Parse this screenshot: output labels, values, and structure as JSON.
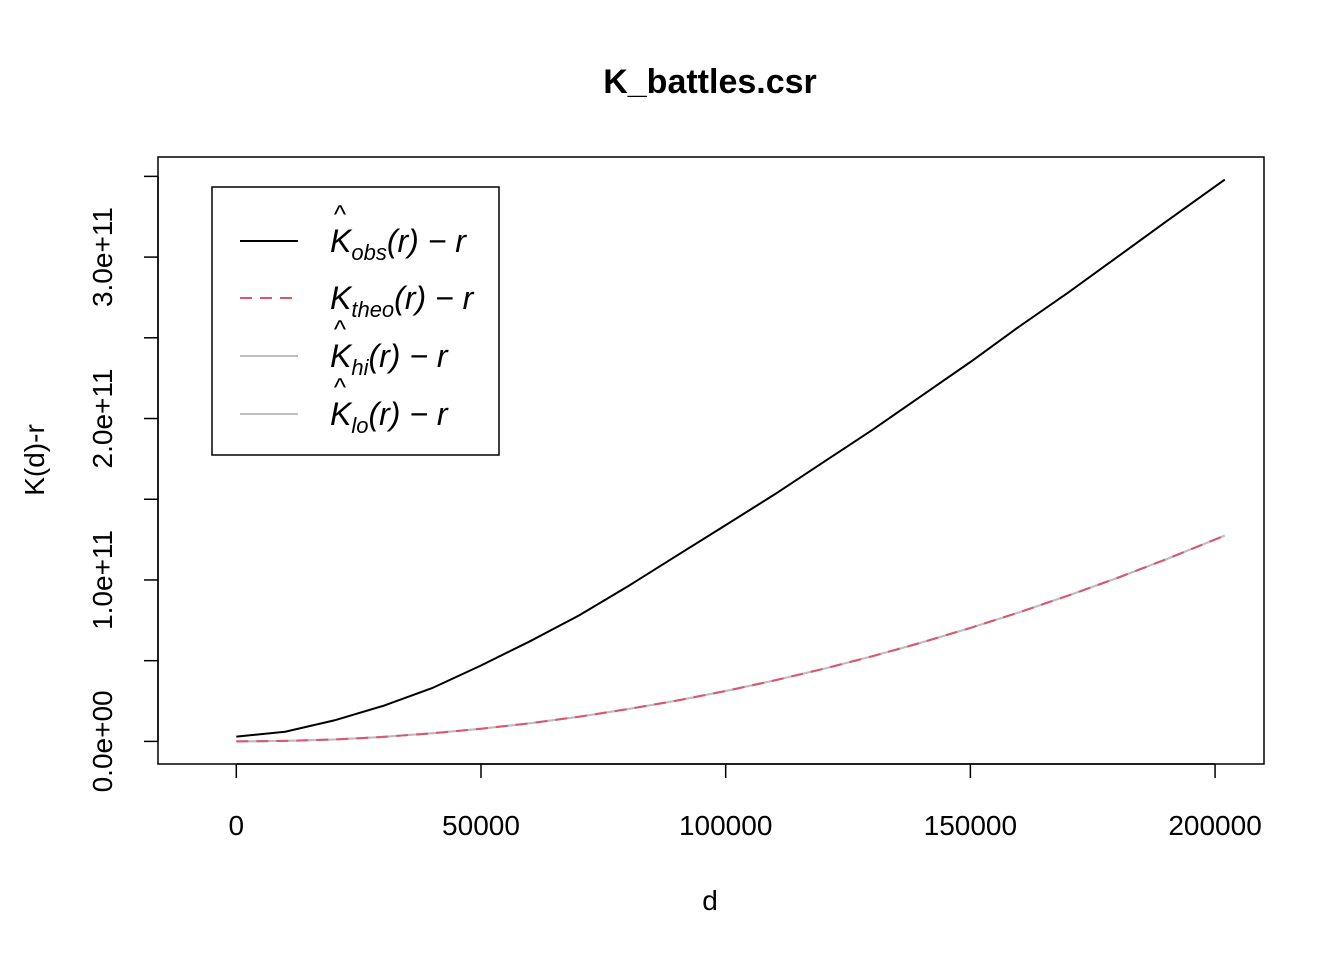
{
  "chart_data": {
    "type": "line",
    "title": "K_battles.csr",
    "xlabel": "d",
    "ylabel": "K(d)-r",
    "xlim": [
      -16000,
      210000
    ],
    "ylim": [
      -14000000000,
      362000000000
    ],
    "x_ticks": [
      0,
      50000,
      100000,
      150000,
      200000
    ],
    "x_tick_labels": [
      "0",
      "50000",
      "100000",
      "150000",
      "200000"
    ],
    "y_ticks": [
      0,
      50000000000,
      100000000000,
      150000000000,
      200000000000,
      250000000000,
      300000000000,
      350000000000
    ],
    "y_tick_labels": [
      "0.0e+00",
      "",
      "1.0e+11",
      "",
      "2.0e+11",
      "",
      "3.0e+11",
      ""
    ],
    "grid": false,
    "legend_position": "top-left",
    "series": [
      {
        "name": "obs",
        "color": "#000000",
        "dash": "solid",
        "x": [
          0,
          10000,
          20000,
          30000,
          40000,
          50000,
          60000,
          70000,
          80000,
          90000,
          100000,
          110000,
          120000,
          130000,
          140000,
          150000,
          160000,
          170000,
          180000,
          190000,
          202000
        ],
        "y": [
          3000000000,
          6000000000,
          13000000000,
          22000000000,
          33000000000,
          47000000000,
          62000000000,
          78000000000,
          96000000000,
          115000000000,
          134000000000,
          153000000000,
          173000000000,
          193000000000,
          214000000000,
          235000000000,
          257000000000,
          278000000000,
          300000000000,
          322000000000,
          348000000000
        ]
      },
      {
        "name": "theo",
        "color": "#DF536B",
        "dash": "dashed",
        "x": [
          0,
          10000,
          20000,
          30000,
          40000,
          50000,
          60000,
          70000,
          80000,
          90000,
          100000,
          110000,
          120000,
          130000,
          140000,
          150000,
          160000,
          170000,
          180000,
          190000,
          202000
        ],
        "y": [
          0,
          300000000,
          1200000000,
          2800000000,
          5000000000,
          7800000000,
          11200000000,
          15300000000,
          20000000000,
          25300000000,
          31200000000,
          37800000000,
          45000000000,
          52800000000,
          61200000000,
          70300000000,
          80000000000,
          90300000000,
          101200000000,
          112800000000,
          127500000000
        ]
      },
      {
        "name": "hi",
        "color": "#BEBEBE",
        "dash": "solid",
        "x": [
          0,
          10000,
          20000,
          30000,
          40000,
          50000,
          60000,
          70000,
          80000,
          90000,
          100000,
          110000,
          120000,
          130000,
          140000,
          150000,
          160000,
          170000,
          180000,
          190000,
          202000
        ],
        "y": [
          0,
          300000000,
          1200000000,
          2800000000,
          5000000000,
          7800000000,
          11200000000,
          15300000000,
          20000000000,
          25300000000,
          31200000000,
          37800000000,
          45000000000,
          52800000000,
          61200000000,
          70300000000,
          80000000000,
          90300000000,
          101200000000,
          112800000000,
          127500000000
        ]
      },
      {
        "name": "lo",
        "color": "#BEBEBE",
        "dash": "solid",
        "x": [
          0,
          10000,
          20000,
          30000,
          40000,
          50000,
          60000,
          70000,
          80000,
          90000,
          100000,
          110000,
          120000,
          130000,
          140000,
          150000,
          160000,
          170000,
          180000,
          190000,
          202000
        ],
        "y": [
          0,
          300000000,
          1200000000,
          2800000000,
          5000000000,
          7800000000,
          11200000000,
          15300000000,
          20000000000,
          25300000000,
          31200000000,
          37800000000,
          45000000000,
          52800000000,
          61200000000,
          70300000000,
          80000000000,
          90300000000,
          101200000000,
          112800000000,
          127500000000
        ]
      }
    ],
    "legend": [
      {
        "base": "K",
        "hat": true,
        "sub": "obs",
        "suffix": "(r) − r",
        "color": "#000000",
        "dash": "solid"
      },
      {
        "base": "K",
        "hat": false,
        "sub": "theo",
        "suffix": "(r) − r",
        "color": "#DF536B",
        "dash": "dashed"
      },
      {
        "base": "K",
        "hat": true,
        "sub": "hi",
        "suffix": "(r) − r",
        "color": "#BEBEBE",
        "dash": "solid"
      },
      {
        "base": "K",
        "hat": true,
        "sub": "lo",
        "suffix": "(r) − r",
        "color": "#BEBEBE",
        "dash": "solid"
      }
    ]
  }
}
